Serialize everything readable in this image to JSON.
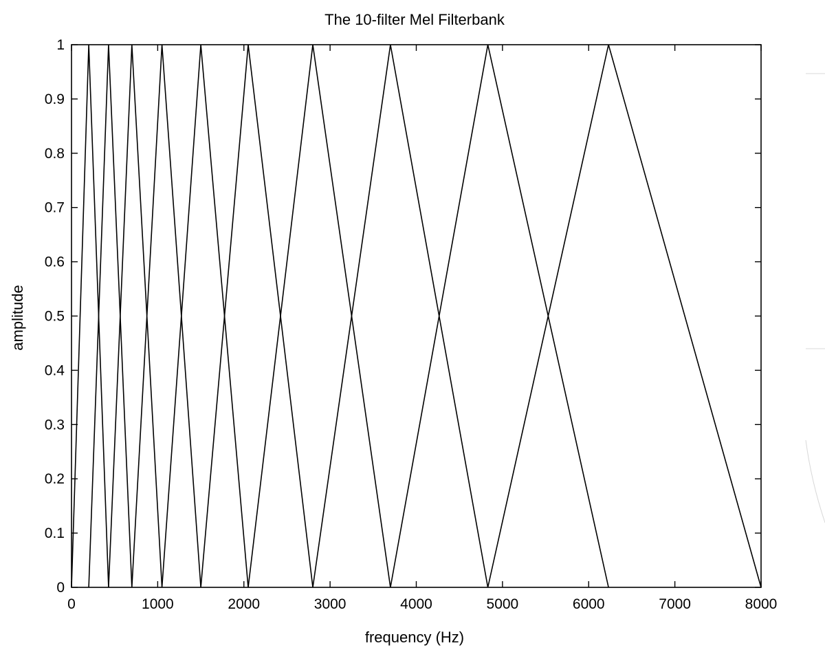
{
  "chart_data": {
    "type": "line",
    "title": "The 10-filter Mel Filterbank",
    "xlabel": "frequency (Hz)",
    "ylabel": "amplitude",
    "xlim": [
      0,
      8000
    ],
    "ylim": [
      0,
      1
    ],
    "xticks": [
      0,
      1000,
      2000,
      3000,
      4000,
      5000,
      6000,
      7000,
      8000
    ],
    "xtick_labels": [
      "0",
      "1000",
      "2000",
      "3000",
      "4000",
      "5000",
      "6000",
      "7000",
      "8000"
    ],
    "yticks": [
      0,
      0.1,
      0.2,
      0.3,
      0.4,
      0.5,
      0.6,
      0.7,
      0.8,
      0.9,
      1
    ],
    "ytick_labels": [
      "0",
      "0.1",
      "0.2",
      "0.3",
      "0.4",
      "0.5",
      "0.6",
      "0.7",
      "0.8",
      "0.9",
      "1"
    ],
    "grid": false,
    "line_color": "#000000",
    "filter_edges_hz": [
      0,
      200,
      430,
      700,
      1050,
      1500,
      2050,
      2800,
      3700,
      4830,
      6230,
      8000
    ],
    "filters": [
      {
        "x": [
          0,
          200,
          430
        ],
        "y": [
          0,
          1,
          0
        ]
      },
      {
        "x": [
          200,
          430,
          700
        ],
        "y": [
          0,
          1,
          0
        ]
      },
      {
        "x": [
          430,
          700,
          1050
        ],
        "y": [
          0,
          1,
          0
        ]
      },
      {
        "x": [
          700,
          1050,
          1500
        ],
        "y": [
          0,
          1,
          0
        ]
      },
      {
        "x": [
          1050,
          1500,
          2050
        ],
        "y": [
          0,
          1,
          0
        ]
      },
      {
        "x": [
          1500,
          2050,
          2800
        ],
        "y": [
          0,
          1,
          0
        ]
      },
      {
        "x": [
          2050,
          2800,
          3700
        ],
        "y": [
          0,
          1,
          0
        ]
      },
      {
        "x": [
          2800,
          3700,
          4830
        ],
        "y": [
          0,
          1,
          0
        ]
      },
      {
        "x": [
          3700,
          4830,
          6230
        ],
        "y": [
          0,
          1,
          0
        ]
      },
      {
        "x": [
          4830,
          6230,
          8000
        ],
        "y": [
          0,
          1,
          0
        ]
      }
    ]
  }
}
